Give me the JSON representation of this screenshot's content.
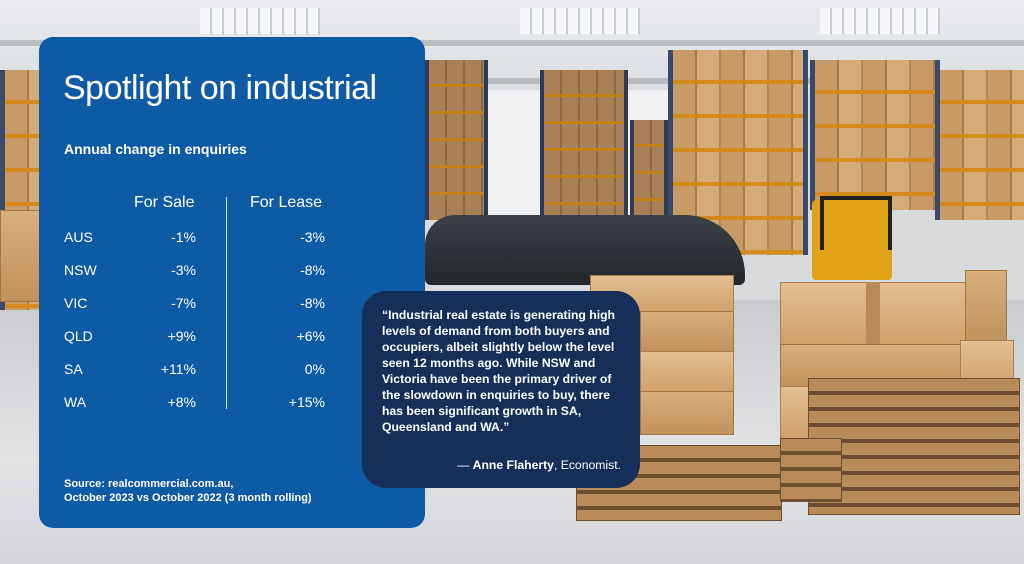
{
  "title": "Spotlight on industrial",
  "subtitle": "Annual change in enquiries",
  "columns": {
    "sale": "For Sale",
    "lease": "For Lease"
  },
  "rows": [
    {
      "region": "AUS",
      "sale": "-1%",
      "lease": "-3%"
    },
    {
      "region": "NSW",
      "sale": "-3%",
      "lease": "-8%"
    },
    {
      "region": "VIC",
      "sale": "-7%",
      "lease": "-8%"
    },
    {
      "region": "QLD",
      "sale": "+9%",
      "lease": "+6%"
    },
    {
      "region": "SA",
      "sale": "+11%",
      "lease": "0%"
    },
    {
      "region": "WA",
      "sale": "+8%",
      "lease": "+15%"
    }
  ],
  "source": {
    "line1": "Source: realcommercial.com.au,",
    "line2": "October 2023 vs October 2022 (3 month rolling)"
  },
  "quote": {
    "text": "“Industrial real estate is generating high levels of demand from both buyers and occupiers, albeit slightly below the level seen 12 months ago. While NSW and Victoria have been the primary driver of the slowdown in enquiries to buy, there has been significant growth in SA, Queensland and WA.”",
    "dash": "— ",
    "author": "Anne Flaherty",
    "role": ", Economist."
  },
  "colors": {
    "card": "#0f5aa5",
    "quote": "#152e5a",
    "text": "#ffffff"
  }
}
